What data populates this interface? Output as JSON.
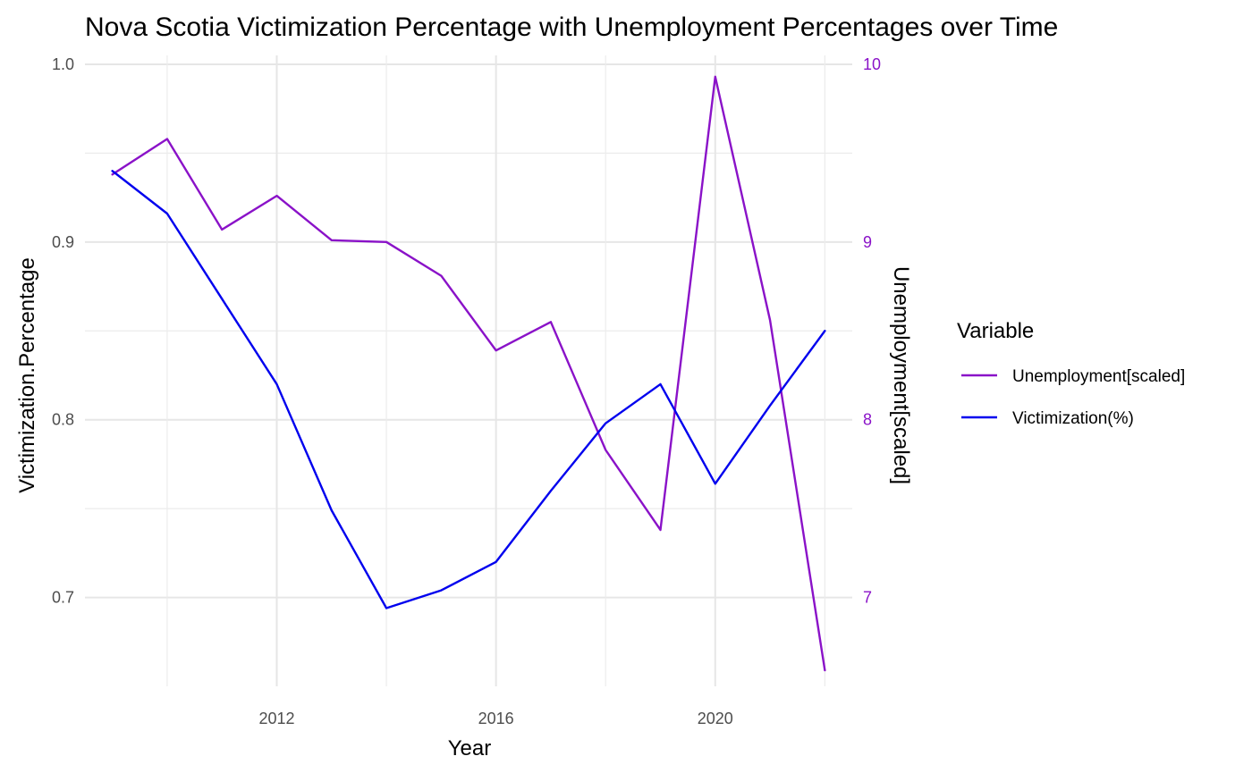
{
  "chart_data": {
    "type": "line",
    "title": "Nova Scotia Victimization Percentage with Unemployment Percentages over Time",
    "xlabel": "Year",
    "ylabel": "Victimization.Percentage",
    "y2label": "Unemployment[scaled]",
    "x": [
      2009,
      2010,
      2011,
      2012,
      2013,
      2014,
      2015,
      2016,
      2017,
      2018,
      2019,
      2020,
      2021,
      2022
    ],
    "xlim": [
      2008.5,
      2022.5
    ],
    "xticks": [
      "2012",
      "2016",
      "2020"
    ],
    "ylim": [
      0.65,
      1.005
    ],
    "yticks": [
      "0.7",
      "0.8",
      "0.9",
      "1.0"
    ],
    "y2lim": [
      6.5,
      10.05
    ],
    "y2ticks": [
      "7",
      "8",
      "9",
      "10"
    ],
    "grid": true,
    "legend": {
      "title": "Variable",
      "placement": "right"
    },
    "series": [
      {
        "name": "Unemployment[scaled]",
        "axis": "right",
        "color": "#8a12c8",
        "values": [
          9.38,
          9.58,
          9.07,
          9.26,
          9.01,
          9.0,
          8.81,
          8.39,
          8.55,
          7.83,
          7.38,
          9.93,
          8.56,
          6.59
        ]
      },
      {
        "name": "Victimization(%)",
        "axis": "left",
        "color": "#0000ee",
        "values": [
          0.94,
          0.916,
          0.868,
          0.82,
          0.749,
          0.694,
          0.704,
          0.72,
          0.76,
          0.798,
          0.82,
          0.764,
          0.808,
          0.85
        ]
      }
    ]
  }
}
